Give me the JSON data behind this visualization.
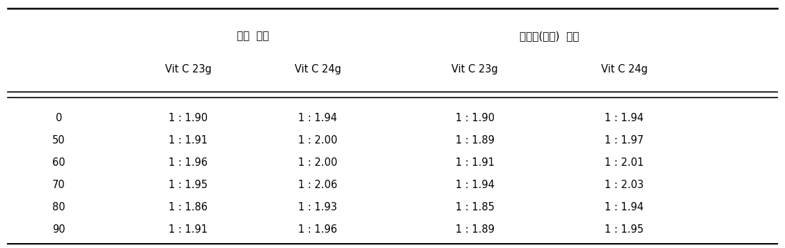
{
  "group_headers": [
    "은박  밀봉",
    "지퍼백(비닐)  밀봉"
  ],
  "col_headers": [
    "Vit C 23g",
    "Vit C 24g",
    "Vit C 23g",
    "Vit C 24g"
  ],
  "row_labels": [
    "0",
    "50",
    "60",
    "70",
    "80",
    "90"
  ],
  "table_data": [
    [
      "1 : 1.90",
      "1 : 1.94",
      "1 : 1.90",
      "1 : 1.94"
    ],
    [
      "1 : 1.91",
      "1 : 2.00",
      "1 : 1.89",
      "1 : 1.97"
    ],
    [
      "1 : 1.96",
      "1 : 2.00",
      "1 : 1.91",
      "1 : 2.01"
    ],
    [
      "1 : 1.95",
      "1 : 2.06",
      "1 : 1.94",
      "1 : 2.03"
    ],
    [
      "1 : 1.86",
      "1 : 1.93",
      "1 : 1.85",
      "1 : 1.94"
    ],
    [
      "1 : 1.91",
      "1 : 1.96",
      "1 : 1.89",
      "1 : 1.95"
    ]
  ],
  "bg_color": "#ffffff",
  "text_color": "#000000",
  "font_size": 10.5,
  "header_font_size": 11
}
